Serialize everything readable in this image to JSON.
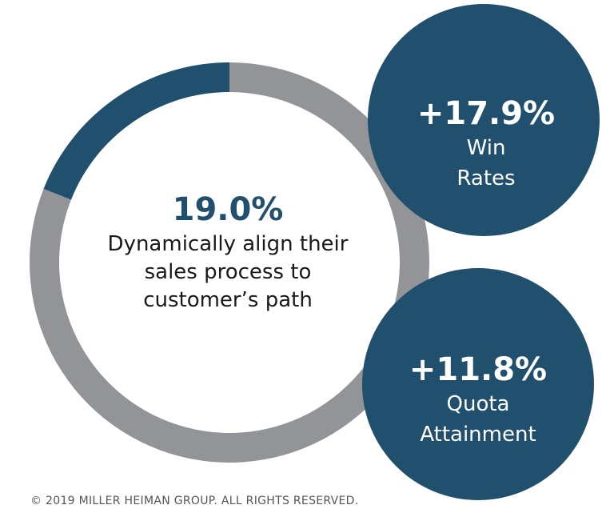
{
  "chart_data": {
    "type": "pie",
    "title": "",
    "slices": [
      {
        "label": "Dynamically align their sales process to customer’s path",
        "value": 19.0,
        "color": "#21506f"
      },
      {
        "label": "",
        "value": 81.0,
        "color": "#929497"
      }
    ],
    "center": {
      "value_text": "19.0%",
      "desc_lines": [
        "Dynamically align their",
        "sales process to",
        "customer’s path"
      ]
    }
  },
  "stats": [
    {
      "value": "+17.9%",
      "label_lines": [
        "Win",
        "Rates"
      ],
      "color": "#21506f"
    },
    {
      "value": "+11.8%",
      "label_lines": [
        "Quota",
        "Attainment"
      ],
      "color": "#21506f"
    }
  ],
  "footer": "© 2019 MILLER HEIMAN GROUP. ALL RIGHTS RESERVED."
}
